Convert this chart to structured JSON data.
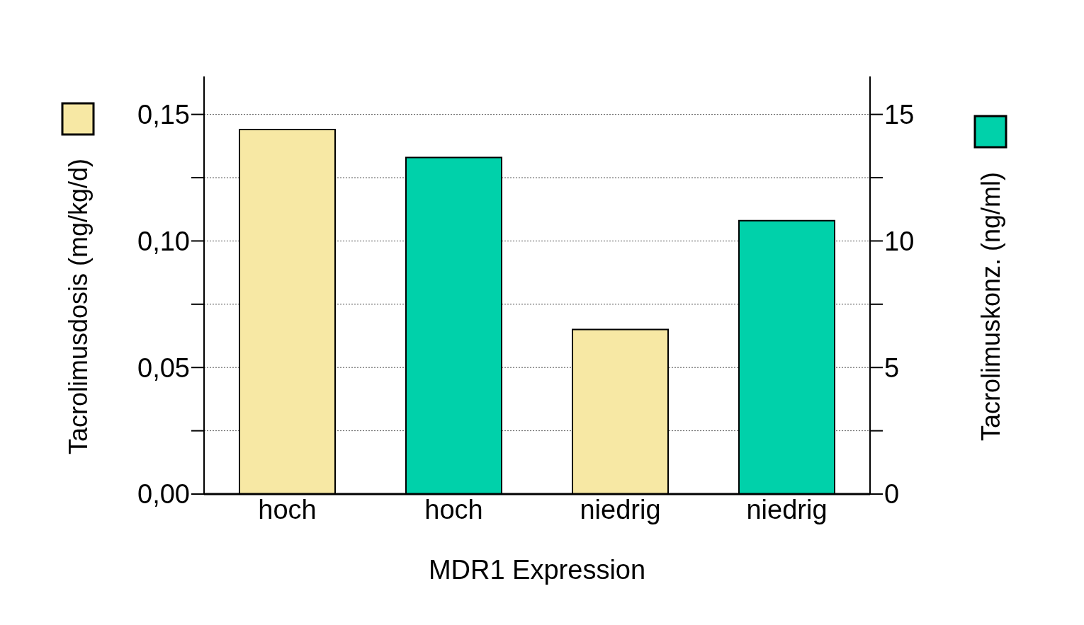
{
  "chart_data": {
    "type": "bar",
    "xlabel": "MDR1 Expression",
    "ylabel": "Tacrolimusdosis (mg/kg/d)",
    "y2label": "Tacrolimuskonz. (ng/ml)",
    "categories": [
      "hoch",
      "hoch",
      "niedrig",
      "niedrig"
    ],
    "series": [
      {
        "color": "#f7e8a4",
        "values": [
          0.144,
          null,
          0.065,
          null
        ]
      },
      {
        "color": "#00d1aa",
        "axis": "y2",
        "values": [
          null,
          13.3,
          null,
          10.8
        ]
      }
    ],
    "ylim": [
      0,
      0.165
    ],
    "yticks": [
      {
        "value": 0,
        "label": "0,00"
      },
      {
        "value": 0.025,
        "label": null
      },
      {
        "value": 0.05,
        "label": "0,05"
      },
      {
        "value": 0.075,
        "label": null
      },
      {
        "value": 0.1,
        "label": "0,10"
      },
      {
        "value": 0.125,
        "label": null
      },
      {
        "value": 0.15,
        "label": "0,15"
      }
    ],
    "y2lim": [
      0,
      16.5
    ],
    "y2ticks": [
      0,
      {
        "value": 2.5,
        "label": null
      },
      5,
      {
        "value": 7.5,
        "label": null
      },
      10,
      {
        "value": 12.5,
        "label": null
      },
      15
    ],
    "grid": "y2"
  }
}
